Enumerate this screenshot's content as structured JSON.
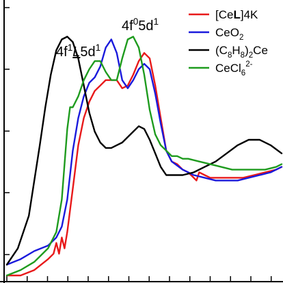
{
  "chart_data": {
    "type": "line",
    "title": "",
    "xlabel": "",
    "ylabel": "",
    "xlim": [
      0,
      100
    ],
    "ylim": [
      0,
      1
    ],
    "x_ticks": [
      0,
      7.4,
      14.8,
      22.2,
      29.6,
      37.0,
      44.4,
      51.8,
      59.2,
      66.6,
      74.0,
      81.4,
      88.8,
      96.2
    ],
    "y_ticks": [
      0.077,
      0.305,
      0.532,
      0.76,
      0.987
    ],
    "grid": false,
    "legend_position": "top-right",
    "annotations": [
      {
        "id": "peak_a",
        "parts": [
          {
            "t": "4f"
          },
          {
            "t": "1",
            "sup": true
          },
          {
            "t": "L",
            "italic": true,
            "underline": true
          },
          {
            "t": "5d"
          },
          {
            "t": "1",
            "sup": true
          }
        ]
      },
      {
        "id": "peak_b",
        "parts": [
          {
            "t": "4f"
          },
          {
            "t": "0",
            "sup": true
          },
          {
            "t": "5d"
          },
          {
            "t": "1",
            "sup": true
          }
        ]
      }
    ],
    "series": [
      {
        "id": "cel4k",
        "name_parts": [
          {
            "t": "[Ce"
          },
          {
            "t": "L",
            "bold": true
          },
          {
            "t": "]4K"
          }
        ],
        "color": "#e8191a",
        "x": [
          0,
          5,
          10,
          15,
          17,
          18,
          19,
          20,
          21,
          22,
          24,
          26,
          28,
          30,
          32,
          34,
          36,
          38,
          40,
          42,
          44,
          46,
          48,
          50,
          52,
          54,
          56,
          58,
          60,
          62,
          64,
          66,
          68,
          69,
          70,
          72,
          74,
          78,
          82,
          86,
          90,
          94,
          98,
          100
        ],
        "y": [
          0.0,
          0.0,
          0.02,
          0.06,
          0.08,
          0.12,
          0.08,
          0.14,
          0.1,
          0.16,
          0.32,
          0.48,
          0.58,
          0.64,
          0.68,
          0.7,
          0.72,
          0.72,
          0.72,
          0.69,
          0.7,
          0.74,
          0.79,
          0.82,
          0.8,
          0.7,
          0.58,
          0.46,
          0.42,
          0.41,
          0.39,
          0.38,
          0.36,
          0.35,
          0.38,
          0.37,
          0.36,
          0.36,
          0.36,
          0.36,
          0.37,
          0.38,
          0.39,
          0.4
        ]
      },
      {
        "id": "ceo2",
        "name_parts": [
          {
            "t": "CeO"
          },
          {
            "t": "2",
            "sub": true
          }
        ],
        "color": "#1a1adc",
        "x": [
          0,
          5,
          10,
          15,
          18,
          20,
          22,
          24,
          26,
          28,
          30,
          32,
          34,
          36,
          38,
          40,
          42,
          44,
          46,
          48,
          50,
          52,
          54,
          56,
          58,
          60,
          64,
          68,
          72,
          76,
          80,
          84,
          88,
          92,
          96,
          100
        ],
        "y": [
          0.04,
          0.06,
          0.09,
          0.11,
          0.14,
          0.18,
          0.28,
          0.46,
          0.58,
          0.66,
          0.71,
          0.73,
          0.77,
          0.84,
          0.87,
          0.82,
          0.72,
          0.69,
          0.72,
          0.76,
          0.78,
          0.76,
          0.67,
          0.56,
          0.46,
          0.42,
          0.39,
          0.37,
          0.36,
          0.35,
          0.35,
          0.35,
          0.36,
          0.37,
          0.38,
          0.4
        ]
      },
      {
        "id": "c8h8",
        "name_parts": [
          {
            "t": "(C"
          },
          {
            "t": "8",
            "sub": true
          },
          {
            "t": "H"
          },
          {
            "t": "8",
            "sub": true
          },
          {
            "t": ")"
          },
          {
            "t": "2",
            "sub": true
          },
          {
            "t": "Ce"
          }
        ],
        "color": "#000000",
        "x": [
          0,
          4,
          8,
          12,
          14,
          16,
          18,
          20,
          22,
          24,
          26,
          28,
          30,
          32,
          34,
          36,
          38,
          40,
          42,
          44,
          46,
          48,
          50,
          52,
          54,
          56,
          58,
          60,
          64,
          68,
          72,
          76,
          80,
          84,
          88,
          92,
          96,
          100
        ],
        "y": [
          0.04,
          0.1,
          0.22,
          0.48,
          0.62,
          0.74,
          0.83,
          0.87,
          0.88,
          0.86,
          0.8,
          0.7,
          0.6,
          0.53,
          0.49,
          0.47,
          0.47,
          0.48,
          0.49,
          0.51,
          0.53,
          0.55,
          0.54,
          0.5,
          0.45,
          0.4,
          0.37,
          0.37,
          0.37,
          0.38,
          0.4,
          0.42,
          0.45,
          0.48,
          0.5,
          0.5,
          0.48,
          0.45
        ]
      },
      {
        "id": "cecl6",
        "name_parts": [
          {
            "t": "CeCl"
          },
          {
            "t": "6",
            "sub": true
          },
          {
            "t": "2-",
            "sup": true
          }
        ],
        "color": "#1e9b1e",
        "x": [
          0,
          5,
          10,
          15,
          18,
          20,
          22,
          23,
          24,
          26,
          28,
          30,
          32,
          34,
          36,
          38,
          40,
          42,
          44,
          46,
          48,
          50,
          52,
          54,
          56,
          58,
          60,
          62,
          64,
          66,
          70,
          74,
          78,
          82,
          86,
          90,
          94,
          98,
          100
        ],
        "y": [
          0.0,
          0.02,
          0.05,
          0.1,
          0.16,
          0.28,
          0.54,
          0.62,
          0.62,
          0.66,
          0.72,
          0.76,
          0.79,
          0.79,
          0.75,
          0.72,
          0.72,
          0.8,
          0.87,
          0.88,
          0.84,
          0.74,
          0.61,
          0.52,
          0.48,
          0.46,
          0.44,
          0.44,
          0.43,
          0.43,
          0.42,
          0.41,
          0.4,
          0.39,
          0.39,
          0.39,
          0.39,
          0.4,
          0.41
        ]
      }
    ]
  }
}
